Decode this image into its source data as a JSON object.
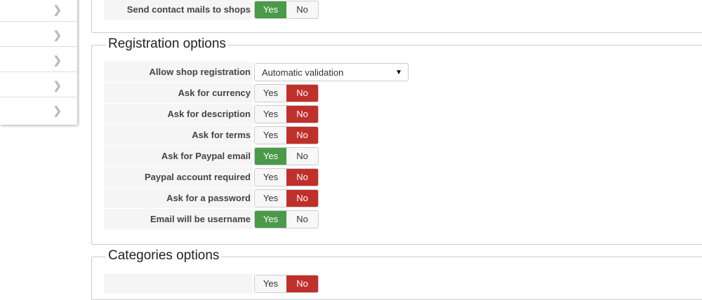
{
  "sidebar": {
    "items": [
      {
        "icon": "chevron-right-icon"
      },
      {
        "icon": "chevron-right-icon"
      },
      {
        "icon": "chevron-right-icon"
      },
      {
        "icon": "chevron-right-icon"
      },
      {
        "icon": "chevron-right-icon"
      }
    ]
  },
  "top_row": {
    "label": "Send contact mails to shops",
    "yes": "Yes",
    "no": "No",
    "value": "Yes"
  },
  "registration": {
    "title": "Registration options",
    "select": {
      "label": "Allow shop registration",
      "value": "Automatic validation"
    },
    "toggles": [
      {
        "label": "Ask for currency",
        "value": "No"
      },
      {
        "label": "Ask for description",
        "value": "No"
      },
      {
        "label": "Ask for terms",
        "value": "No"
      },
      {
        "label": "Ask for Paypal email",
        "value": "Yes"
      },
      {
        "label": "Paypal account required",
        "value": "No"
      },
      {
        "label": "Ask for a password",
        "value": "No"
      },
      {
        "label": "Email will be username",
        "value": "Yes"
      }
    ]
  },
  "categories": {
    "title": "Categories options",
    "toggles": [
      {
        "label": "",
        "value": "No"
      }
    ]
  },
  "yes_label": "Yes",
  "no_label": "No",
  "colors": {
    "yes_active": "#4a9a4a",
    "no_active": "#c0302b"
  }
}
